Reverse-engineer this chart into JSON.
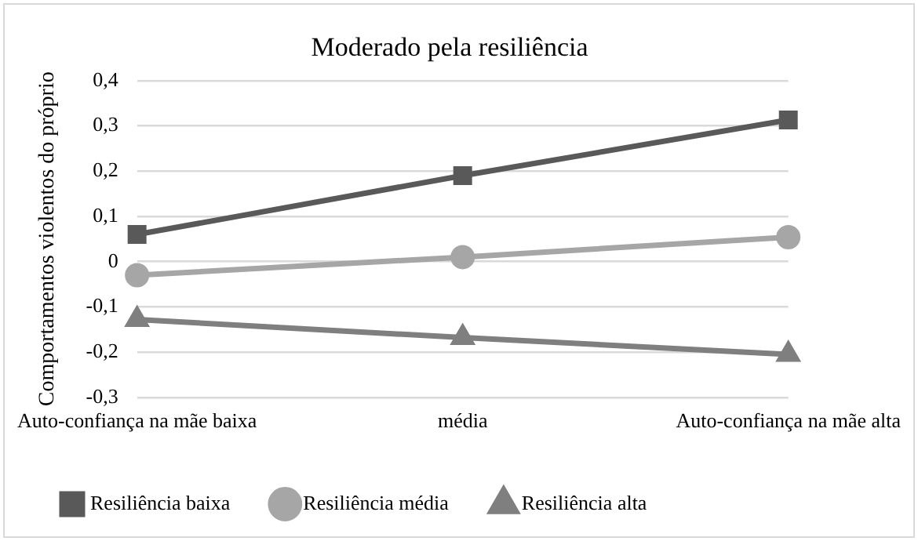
{
  "chart_data": {
    "type": "line",
    "title": "Moderado pela resiliência",
    "ylabel": "Comportamentos violentos do próprio",
    "categories": [
      "Auto-confiança na mãe baixa",
      "média",
      "Auto-confiança na mãe alta"
    ],
    "series": [
      {
        "name": "Resiliência baixa",
        "color": "#595959",
        "marker": "square",
        "values": [
          0.06,
          0.19,
          0.313
        ]
      },
      {
        "name": "Resiliência média",
        "color": "#a6a6a6",
        "marker": "circle",
        "values": [
          -0.03,
          0.01,
          0.054
        ]
      },
      {
        "name": "Resiliência alta",
        "color": "#7f7f7f",
        "marker": "triangle",
        "values": [
          -0.128,
          -0.168,
          -0.205
        ]
      }
    ],
    "ylim": [
      -0.3,
      0.4
    ],
    "yticks": [
      {
        "value": -0.3,
        "label": "-0,3"
      },
      {
        "value": -0.2,
        "label": "-0,2"
      },
      {
        "value": -0.1,
        "label": "-0,1"
      },
      0,
      {
        "value": 0.1,
        "label": "0,1"
      },
      {
        "value": 0.2,
        "label": "0,2"
      },
      {
        "value": 0.3,
        "label": "0,3"
      },
      {
        "value": 0.4,
        "label": "0,4"
      }
    ],
    "grid": "y",
    "legend": "bottom",
    "line_style": "solid"
  }
}
